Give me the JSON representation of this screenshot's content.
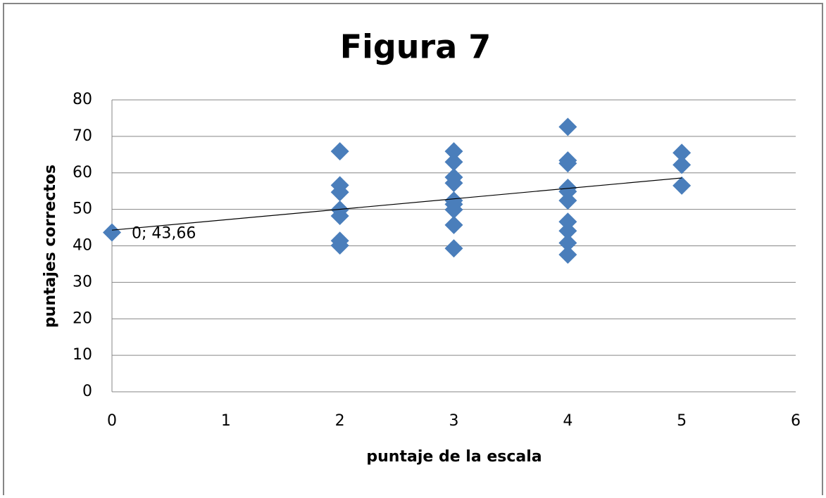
{
  "chart_data": {
    "type": "scatter",
    "title": "Figura 7",
    "x_label": "puntaje de la escala",
    "y_label": "puntajes correctos",
    "series": [
      {
        "name": "puntajes correctos",
        "color": "#4a7ebb",
        "x": [
          0,
          2,
          2,
          2,
          2,
          2,
          2,
          2,
          3,
          3,
          3,
          3,
          3,
          3,
          3,
          3,
          3,
          4,
          4,
          4,
          4,
          4,
          4,
          4,
          4,
          4,
          4,
          5,
          5,
          5
        ],
        "values": [
          43.66,
          65.9,
          56.6,
          54.7,
          49.9,
          48.2,
          41.4,
          40.1,
          65.9,
          63.0,
          58.8,
          57.2,
          52.4,
          51.4,
          49.9,
          45.7,
          39.3,
          72.6,
          63.4,
          62.6,
          55.9,
          54.9,
          52.4,
          46.6,
          44.1,
          40.8,
          37.6,
          65.5,
          62.2,
          56.5
        ],
        "value_labels": [
          "0; 43,66",
          null,
          null,
          null,
          null,
          null,
          null,
          null,
          null,
          null,
          null,
          null,
          null,
          null,
          null,
          null,
          null,
          null,
          null,
          null,
          null,
          null,
          null,
          null,
          null,
          null,
          null,
          null,
          null,
          null
        ]
      }
    ],
    "trendline": {
      "color": "#000000",
      "x": [
        0,
        5
      ],
      "values": [
        44.3,
        58.6
      ]
    },
    "xlim": [
      0,
      6
    ],
    "xticks": [
      0,
      1,
      2,
      3,
      4,
      5,
      6
    ],
    "ylim": [
      0,
      80
    ],
    "yticks": [
      0,
      10,
      20,
      30,
      40,
      50,
      60,
      70,
      80
    ],
    "grid": true
  }
}
